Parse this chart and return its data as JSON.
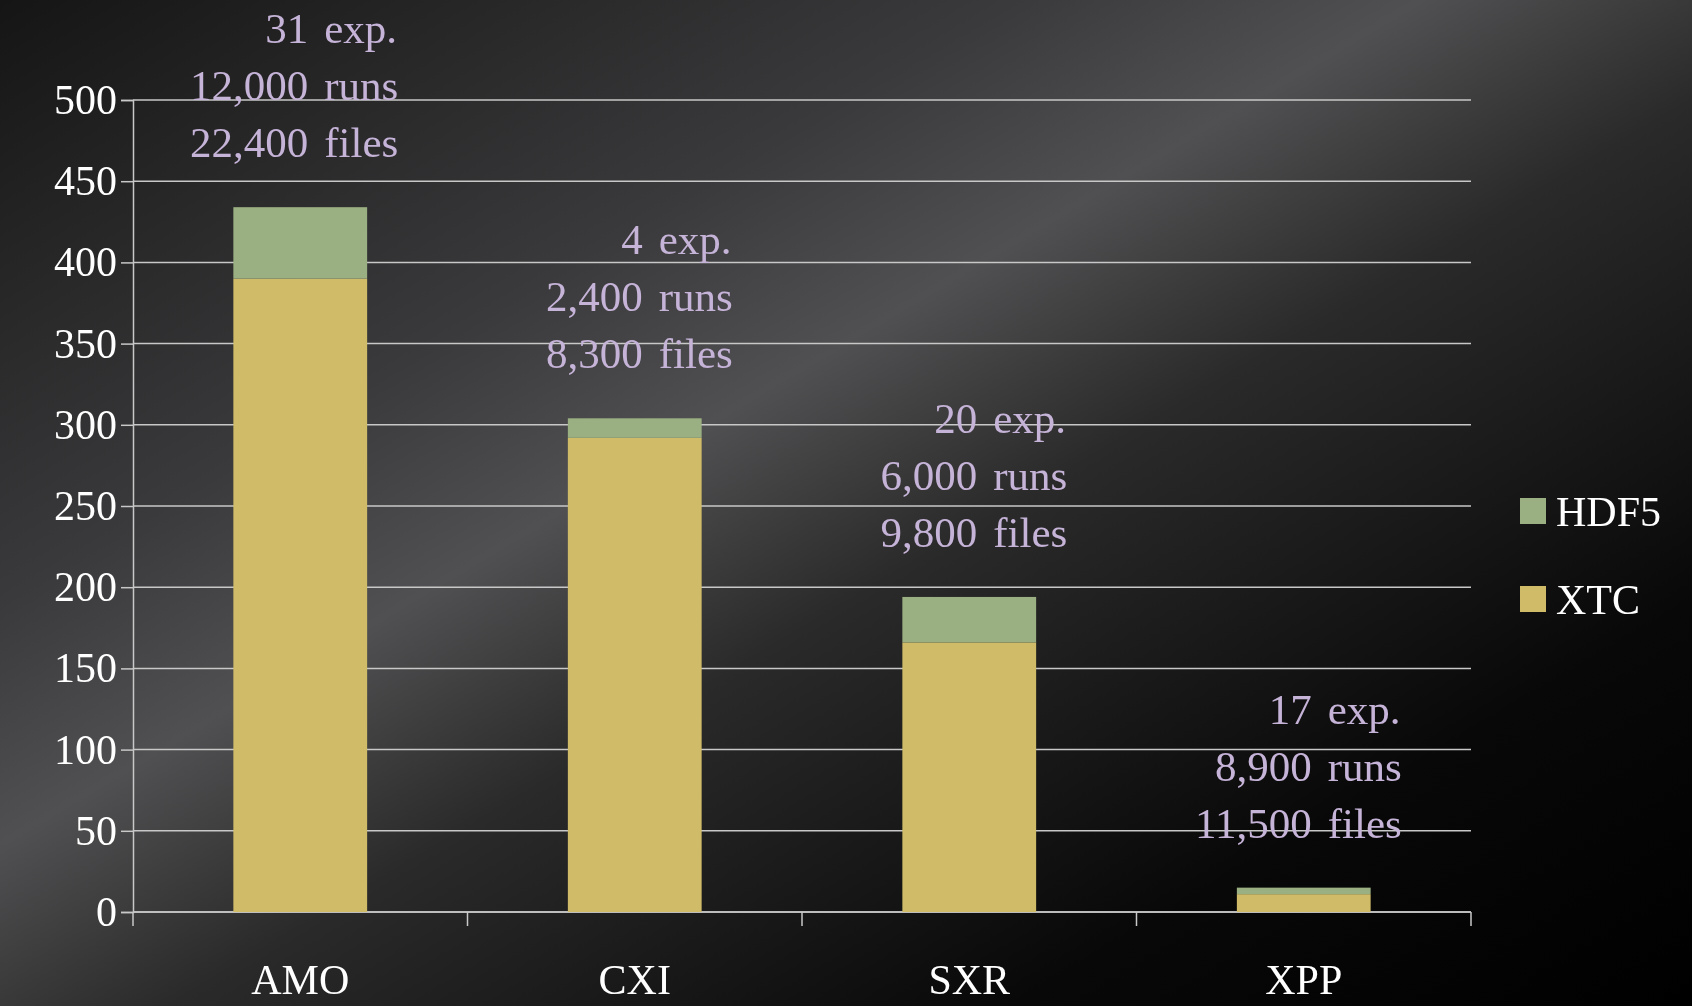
{
  "chart_data": {
    "type": "bar",
    "stacked": true,
    "categories": [
      "AMO",
      "CXI",
      "SXR",
      "XPP"
    ],
    "series": [
      {
        "name": "XTC",
        "color": "#cfbb68",
        "values": [
          390,
          292,
          166,
          11
        ]
      },
      {
        "name": "HDF5",
        "color": "#9bb082",
        "values": [
          44,
          12,
          28,
          4
        ]
      }
    ],
    "ylim": [
      0,
      500
    ],
    "yticks": [
      0,
      50,
      100,
      150,
      200,
      250,
      300,
      350,
      400,
      450,
      500
    ],
    "grid": "y",
    "legend": "right",
    "annotations": [
      {
        "text": "31 exp.\n12,000 runs\n22,400 files",
        "x": "AMO",
        "y": 434
      },
      {
        "text": "4 exp.\n2,400 runs\n8,300 files",
        "x": "CXI",
        "y": 304
      },
      {
        "text": "20 exp.\n6,000 runs\n9,800 files",
        "x": "SXR",
        "y": 194
      },
      {
        "text": "17 exp.\n8,900 runs\n11,500 files",
        "x": "XPP",
        "y": 15
      }
    ]
  }
}
